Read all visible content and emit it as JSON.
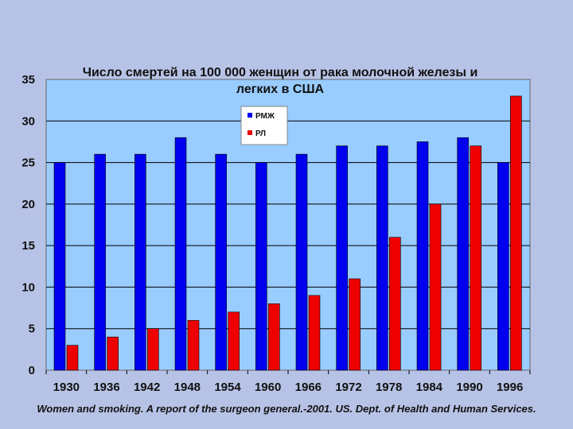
{
  "chart_data": {
    "type": "bar",
    "title_lines": [
      "Число смертей на 100 000 женщин от рака молочной железы и",
      "легких в США"
    ],
    "categories": [
      "1930",
      "1936",
      "1942",
      "1948",
      "1954",
      "1960",
      "1966",
      "1972",
      "1978",
      "1984",
      "1990",
      "1996"
    ],
    "series": [
      {
        "name": "РМЖ",
        "color": "#0000ee",
        "values": [
          25,
          26,
          26,
          28,
          26,
          25,
          26,
          27,
          27,
          27.5,
          28,
          25
        ]
      },
      {
        "name": "РЛ",
        "color": "#ee0000",
        "values": [
          3,
          4,
          5,
          6,
          7,
          8,
          9,
          11,
          16,
          20,
          27,
          33
        ]
      }
    ],
    "ylim": [
      0,
      35
    ],
    "yticks": [
      0,
      5,
      10,
      15,
      20,
      25,
      30,
      35
    ],
    "grid": true,
    "legend_position": "top-center",
    "plot_background": "#99ccff"
  },
  "caption": "Women and smoking. A report of the surgeon general.-2001. US. Dept. of Health and Human Services."
}
